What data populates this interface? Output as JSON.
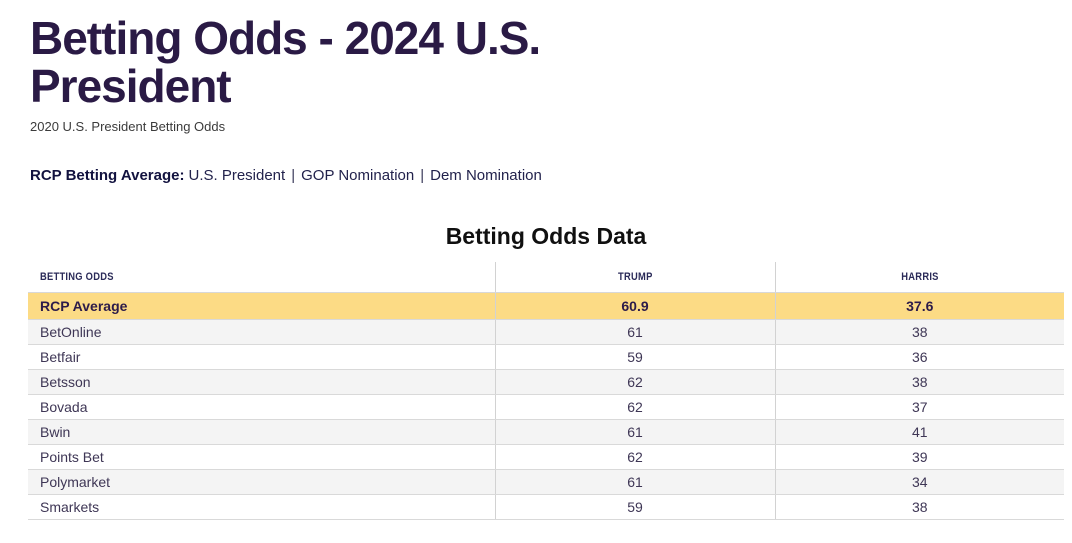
{
  "page": {
    "title": "Betting Odds - 2024 U.S. President",
    "subtitle": "2020 U.S. President Betting Odds"
  },
  "rcp_nav": {
    "label": "RCP Betting Average:",
    "separator": "|",
    "items": [
      "U.S. President",
      "GOP Nomination",
      "Dem Nomination"
    ]
  },
  "table": {
    "heading": "Betting Odds Data",
    "columns": [
      "BETTING ODDS",
      "TRUMP",
      "HARRIS"
    ],
    "highlight_row": {
      "name": "RCP Average",
      "trump": "60.9",
      "harris": "37.6"
    },
    "rows": [
      {
        "name": "BetOnline",
        "trump": "61",
        "harris": "38"
      },
      {
        "name": "Betfair",
        "trump": "59",
        "harris": "36"
      },
      {
        "name": "Betsson",
        "trump": "62",
        "harris": "38"
      },
      {
        "name": "Bovada",
        "trump": "62",
        "harris": "37"
      },
      {
        "name": "Bwin",
        "trump": "61",
        "harris": "41"
      },
      {
        "name": "Points Bet",
        "trump": "62",
        "harris": "39"
      },
      {
        "name": "Polymarket",
        "trump": "61",
        "harris": "34"
      },
      {
        "name": "Smarkets",
        "trump": "59",
        "harris": "38"
      }
    ],
    "colors": {
      "highlight_bg": "#fcdb85",
      "zebra_bg": "#f4f4f4",
      "border": "#d9d9d9",
      "title_color": "#2a1a45"
    }
  }
}
